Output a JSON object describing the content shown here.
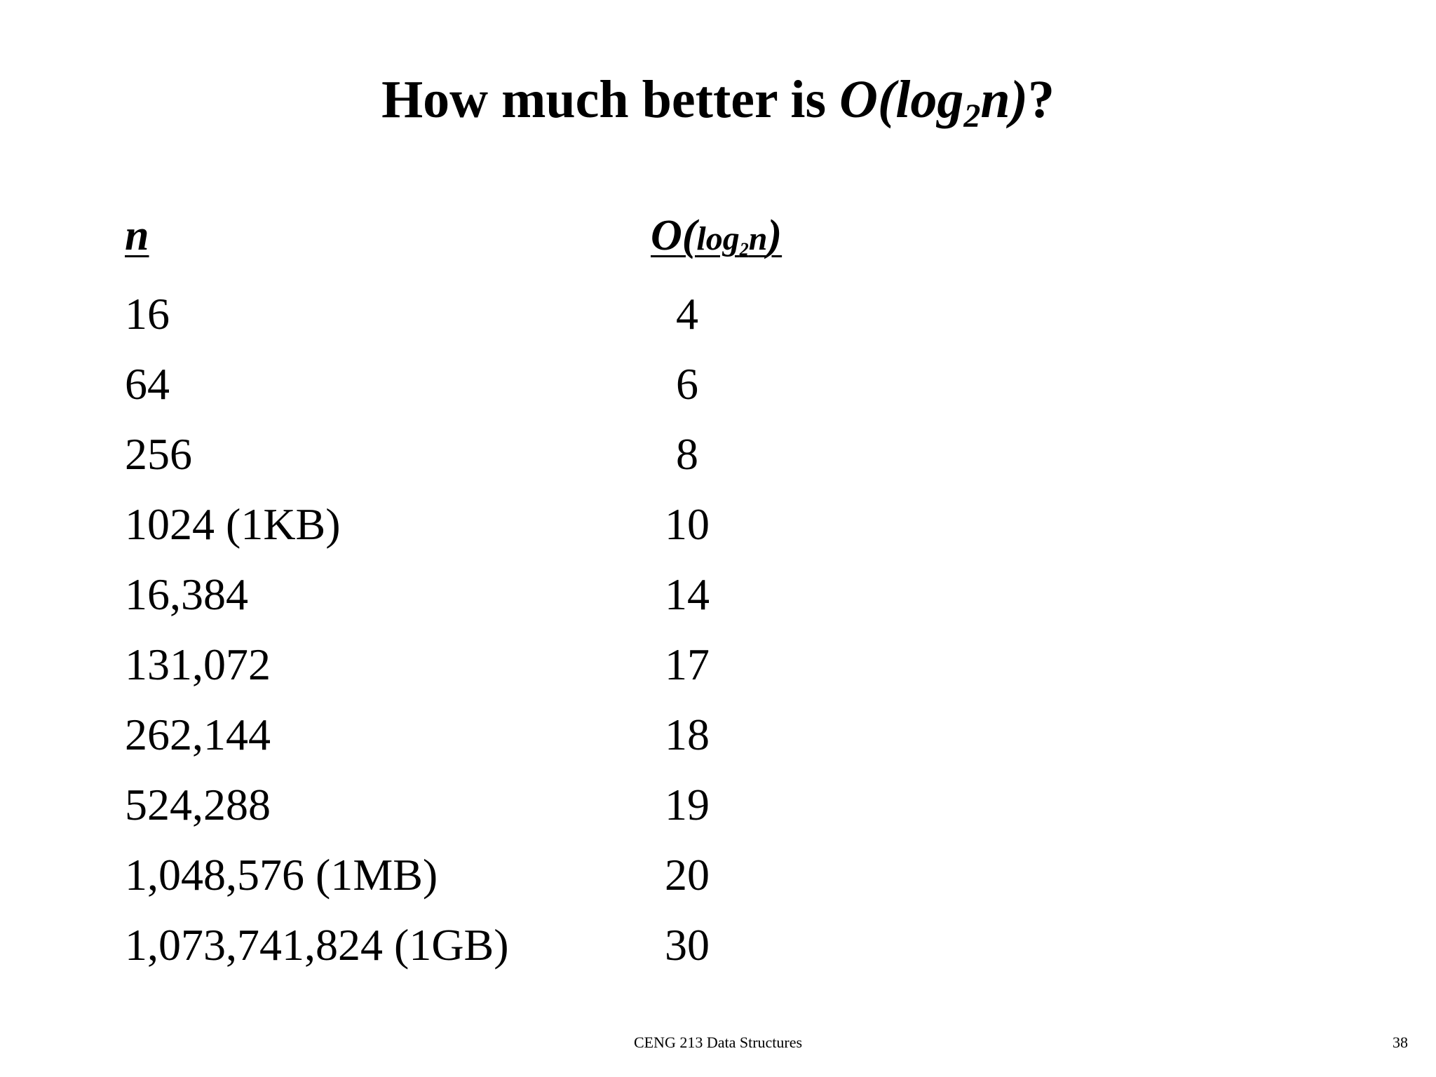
{
  "title": {
    "prefix": "How much better is ",
    "math_open": "O(log",
    "math_sub": "2",
    "math_close": "n)",
    "suffix": "?"
  },
  "table": {
    "header_n": "n",
    "header_log": {
      "open": "O(",
      "log": "log",
      "sub": "2",
      "n": "n",
      "close": ")"
    },
    "rows": [
      {
        "n": "16",
        "log": "4"
      },
      {
        "n": "64",
        "log": "6"
      },
      {
        "n": "256",
        "log": "8"
      },
      {
        "n": "1024 (1KB)",
        "log": "10"
      },
      {
        "n": "16,384",
        "log": "14"
      },
      {
        "n": "131,072",
        "log": "17"
      },
      {
        "n": "262,144",
        "log": "18"
      },
      {
        "n": "524,288",
        "log": "19"
      },
      {
        "n": "1,048,576 (1MB)",
        "log": "20"
      },
      {
        "n": "1,073,741,824 (1GB)",
        "log": "30"
      }
    ]
  },
  "footer": {
    "course": "CENG 213 Data Structures",
    "page_number": "38"
  }
}
